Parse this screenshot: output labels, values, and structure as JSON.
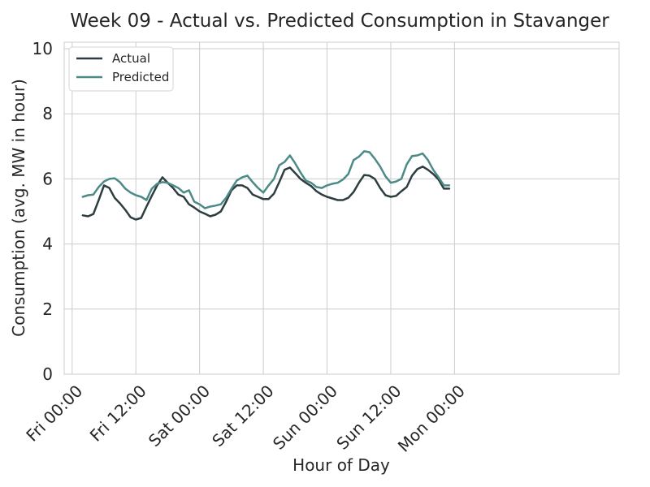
{
  "chart_data": {
    "type": "line",
    "title": "Week 09 - Actual vs. Predicted Consumption in Stavanger",
    "xlabel": "Hour of Day",
    "ylabel": "Consumption (avg. MW in hour)",
    "ylim": [
      0,
      10.2
    ],
    "yticks": [
      0,
      2,
      4,
      6,
      8,
      10
    ],
    "x_unit": "hours since Fri 00:00",
    "xlim": [
      -1.5,
      103
    ],
    "xticks": [
      {
        "value": 0,
        "label": "Fri 00:00"
      },
      {
        "value": 12,
        "label": "Fri 12:00"
      },
      {
        "value": 24,
        "label": "Sat 00:00"
      },
      {
        "value": 36,
        "label": "Sat 12:00"
      },
      {
        "value": 48,
        "label": "Sun 00:00"
      },
      {
        "value": 60,
        "label": "Sun 12:00"
      },
      {
        "value": 72,
        "label": "Mon 00:00"
      }
    ],
    "grid": true,
    "legend_position": "top-left",
    "series": [
      {
        "name": "Actual",
        "color": "#2e3d40",
        "x": [
          2,
          3,
          4,
          5,
          6,
          7,
          8,
          9,
          10,
          11,
          12,
          13,
          14,
          15,
          16,
          17,
          18,
          19,
          20,
          21,
          22,
          23,
          24,
          25,
          26,
          27,
          28,
          29,
          30,
          31,
          32,
          33,
          34,
          35,
          36,
          37,
          38,
          39,
          40,
          41,
          42,
          43,
          44,
          45,
          46,
          47,
          48,
          49,
          50,
          51,
          52,
          53,
          54,
          55,
          56,
          57,
          58,
          59,
          60,
          61,
          62,
          63,
          64,
          65,
          66,
          67,
          68,
          69,
          70,
          71
        ],
        "values": [
          4.88,
          4.85,
          4.92,
          5.35,
          5.8,
          5.72,
          5.42,
          5.25,
          5.05,
          4.82,
          4.75,
          4.8,
          5.15,
          5.48,
          5.8,
          6.05,
          5.88,
          5.72,
          5.52,
          5.45,
          5.22,
          5.12,
          5.0,
          4.93,
          4.85,
          4.9,
          5.0,
          5.3,
          5.65,
          5.8,
          5.8,
          5.72,
          5.52,
          5.45,
          5.38,
          5.38,
          5.55,
          5.9,
          6.28,
          6.35,
          6.18,
          6.0,
          5.88,
          5.78,
          5.62,
          5.52,
          5.45,
          5.4,
          5.35,
          5.35,
          5.42,
          5.6,
          5.88,
          6.12,
          6.1,
          6.0,
          5.72,
          5.5,
          5.45,
          5.48,
          5.62,
          5.75,
          6.1,
          6.3,
          6.38,
          6.28,
          6.15,
          5.98,
          5.7,
          5.7
        ]
      },
      {
        "name": "Predicted",
        "color": "#4b8a86",
        "x": [
          2,
          3,
          4,
          5,
          6,
          7,
          8,
          9,
          10,
          11,
          12,
          13,
          14,
          15,
          16,
          17,
          18,
          19,
          20,
          21,
          22,
          23,
          24,
          25,
          26,
          27,
          28,
          29,
          30,
          31,
          32,
          33,
          34,
          35,
          36,
          37,
          38,
          39,
          40,
          41,
          42,
          43,
          44,
          45,
          46,
          47,
          48,
          49,
          50,
          51,
          52,
          53,
          54,
          55,
          56,
          57,
          58,
          59,
          60,
          61,
          62,
          63,
          64,
          65,
          66,
          67,
          68,
          69,
          70,
          71
        ],
        "values": [
          5.45,
          5.5,
          5.52,
          5.75,
          5.92,
          6.0,
          6.02,
          5.9,
          5.7,
          5.58,
          5.5,
          5.45,
          5.35,
          5.7,
          5.85,
          5.9,
          5.88,
          5.8,
          5.72,
          5.58,
          5.65,
          5.3,
          5.22,
          5.1,
          5.15,
          5.18,
          5.22,
          5.42,
          5.7,
          5.95,
          6.05,
          6.1,
          5.9,
          5.72,
          5.58,
          5.8,
          6.0,
          6.42,
          6.52,
          6.72,
          6.48,
          6.2,
          5.95,
          5.88,
          5.75,
          5.72,
          5.8,
          5.85,
          5.88,
          5.98,
          6.15,
          6.58,
          6.68,
          6.85,
          6.82,
          6.62,
          6.38,
          6.08,
          5.88,
          5.92,
          6.0,
          6.45,
          6.7,
          6.72,
          6.78,
          6.58,
          6.28,
          6.05,
          5.8,
          5.8
        ]
      }
    ]
  }
}
